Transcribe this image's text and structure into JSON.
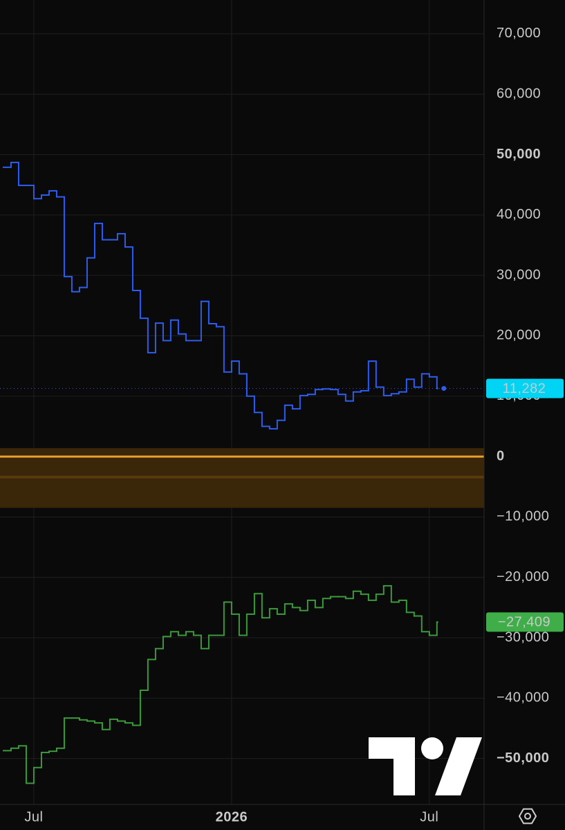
{
  "chart_data": {
    "type": "step",
    "x": [
      -4,
      -3,
      -2,
      -1,
      0,
      1,
      2,
      3,
      4,
      5,
      6,
      7,
      8,
      9,
      10,
      11,
      12,
      13,
      14,
      15,
      16,
      17,
      18,
      19,
      20,
      21,
      22,
      23,
      24,
      25,
      26,
      27,
      28,
      29,
      30,
      31,
      32,
      33,
      34,
      35,
      36,
      37,
      38,
      39,
      40,
      41,
      42,
      43,
      44,
      45,
      46,
      47,
      48,
      49,
      50,
      51,
      52,
      53
    ],
    "series": [
      {
        "color": "#2f5cf0",
        "last_label_color": "#00d4f5",
        "last_text_color": "#0a0a0a",
        "end_dot": true,
        "value_labels_last": "11,282",
        "values": [
          47900,
          48700,
          44900,
          44900,
          42700,
          43300,
          44000,
          43000,
          29800,
          27300,
          28000,
          32900,
          38600,
          35900,
          35900,
          36900,
          34700,
          27500,
          22900,
          17200,
          22100,
          19200,
          22600,
          20300,
          19200,
          19200,
          25700,
          22000,
          21500,
          14000,
          15800,
          13700,
          10000,
          7300,
          5000,
          4600,
          6000,
          8500,
          7900,
          10100,
          10300,
          11100,
          11200,
          11100,
          10300,
          9200,
          10700,
          10900,
          15800,
          11500,
          10100,
          10400,
          10700,
          12800,
          11500,
          13700,
          13200,
          11282
        ]
      },
      {
        "color": "#3c9a3c",
        "last_label_color": "#3fae49",
        "last_text_color": "#ffffff",
        "end_dot": false,
        "value_labels_last": "−27,409",
        "values": [
          -48700,
          -48300,
          -47900,
          -54100,
          -51500,
          -49000,
          -48800,
          -48300,
          -43300,
          -43300,
          -43600,
          -43800,
          -44100,
          -45200,
          -43500,
          -43800,
          -44100,
          -44500,
          -38700,
          -33600,
          -31800,
          -29800,
          -29000,
          -29600,
          -29000,
          -29600,
          -31800,
          -29600,
          -29600,
          -24100,
          -26100,
          -29600,
          -26100,
          -22700,
          -26700,
          -25200,
          -26100,
          -24400,
          -25000,
          -25500,
          -23800,
          -25000,
          -23500,
          -23200,
          -23200,
          -23500,
          -22300,
          -22800,
          -23800,
          -22800,
          -21400,
          -24100,
          -23800,
          -25800,
          -26400,
          -29000,
          -29600,
          -27409
        ]
      }
    ],
    "xlim": [
      -4.45,
      59.2
    ],
    "xticks": [
      {
        "value": 0,
        "label": "Jul"
      },
      {
        "value": 26,
        "label": "2026",
        "bold": true
      },
      {
        "value": 52,
        "label": "Jul"
      }
    ],
    "ylim": [
      -57600,
      75600
    ],
    "yticks": [
      {
        "value": 70000,
        "label": "70,000"
      },
      {
        "value": 60000,
        "label": "60,000"
      },
      {
        "value": 50000,
        "label": "50,000",
        "bold": true
      },
      {
        "value": 40000,
        "label": "40,000"
      },
      {
        "value": 30000,
        "label": "30,000"
      },
      {
        "value": 20000,
        "label": "20,000"
      },
      {
        "value": 10000,
        "label": "10,000"
      },
      {
        "value": 0,
        "label": "0",
        "bold": true
      },
      {
        "value": -10000,
        "label": "−10,000"
      },
      {
        "value": -20000,
        "label": "−20,000"
      },
      {
        "value": -30000,
        "label": "−30,000"
      },
      {
        "value": -40000,
        "label": "−40,000"
      },
      {
        "value": -50000,
        "label": "−50,000",
        "bold": true
      }
    ],
    "grid": true,
    "band": [
      1400,
      -8500
    ],
    "band_color": "#3a2608",
    "band_line": -3400,
    "band_line_color": "#5a3a0c",
    "zero_line_color": "#e8a030"
  }
}
